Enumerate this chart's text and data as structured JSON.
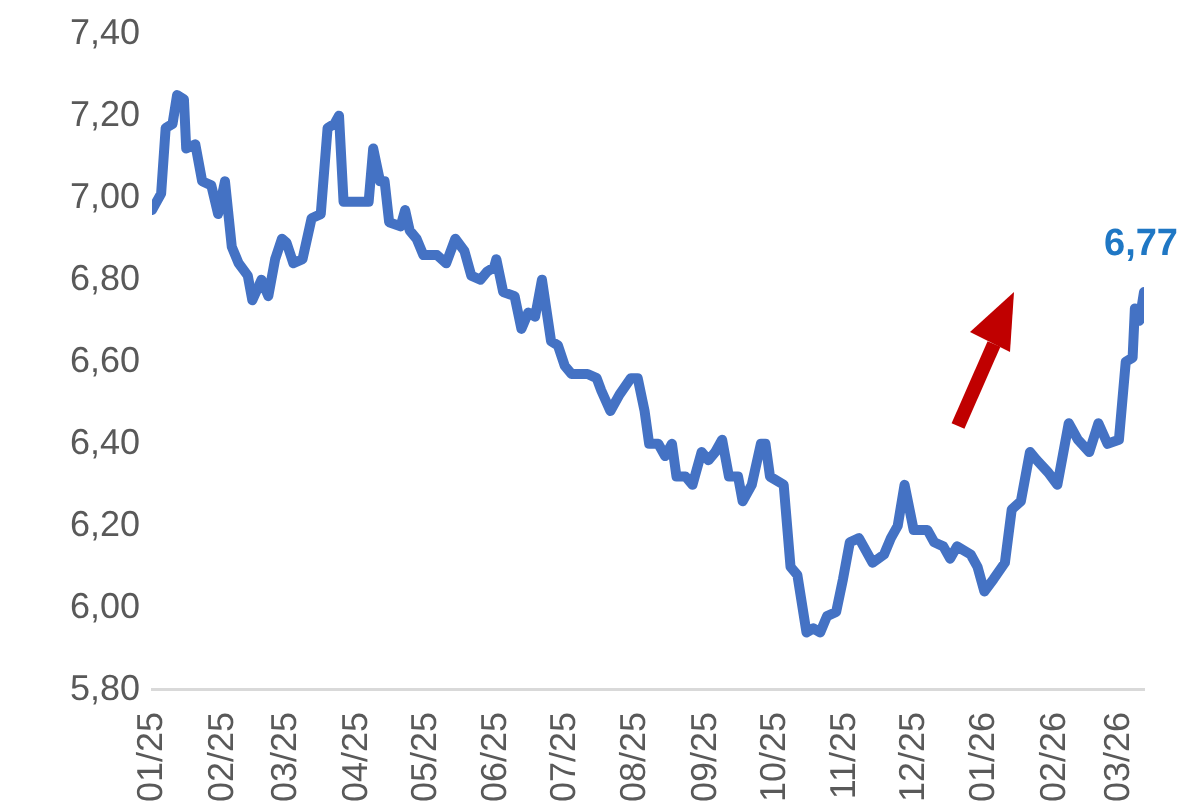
{
  "chart_data": {
    "type": "line",
    "x": [
      "2025-01-01",
      "2025-01-05",
      "2025-01-07",
      "2025-01-10",
      "2025-01-12",
      "2025-01-15",
      "2025-01-16",
      "2025-01-20",
      "2025-01-23",
      "2025-01-27",
      "2025-01-30",
      "2025-02-02",
      "2025-02-05",
      "2025-02-08",
      "2025-02-12",
      "2025-02-14",
      "2025-02-18",
      "2025-02-21",
      "2025-02-24",
      "2025-02-27",
      "2025-03-01",
      "2025-03-04",
      "2025-03-08",
      "2025-03-12",
      "2025-03-16",
      "2025-03-19",
      "2025-03-22",
      "2025-03-24",
      "2025-03-26",
      "2025-04-06",
      "2025-04-08",
      "2025-04-11",
      "2025-04-13",
      "2025-04-15",
      "2025-04-20",
      "2025-04-22",
      "2025-04-24",
      "2025-04-27",
      "2025-04-30",
      "2025-05-06",
      "2025-05-10",
      "2025-05-14",
      "2025-05-18",
      "2025-05-21",
      "2025-05-25",
      "2025-05-28",
      "2025-05-31",
      "2025-06-01",
      "2025-06-04",
      "2025-06-09",
      "2025-06-12",
      "2025-06-15",
      "2025-06-18",
      "2025-06-21",
      "2025-06-25",
      "2025-06-28",
      "2025-07-01",
      "2025-07-04",
      "2025-07-11",
      "2025-07-15",
      "2025-07-17",
      "2025-07-21",
      "2025-07-25",
      "2025-07-30",
      "2025-08-02",
      "2025-08-05",
      "2025-08-07",
      "2025-08-11",
      "2025-08-14",
      "2025-08-17",
      "2025-08-19",
      "2025-08-23",
      "2025-08-26",
      "2025-08-30",
      "2025-09-02",
      "2025-09-05",
      "2025-09-08",
      "2025-09-11",
      "2025-09-15",
      "2025-09-17",
      "2025-09-21",
      "2025-09-25",
      "2025-09-27",
      "2025-09-29",
      "2025-10-05",
      "2025-10-08",
      "2025-10-11",
      "2025-10-15",
      "2025-10-18",
      "2025-10-21",
      "2025-10-24",
      "2025-10-28",
      "2025-10-31",
      "2025-11-03",
      "2025-11-07",
      "2025-11-13",
      "2025-11-18",
      "2025-11-21",
      "2025-11-24",
      "2025-11-27",
      "2025-12-01",
      "2025-12-07",
      "2025-12-10",
      "2025-12-14",
      "2025-12-17",
      "2025-12-20",
      "2025-12-26",
      "2025-12-29",
      "2026-01-01",
      "2026-01-05",
      "2026-01-10",
      "2026-01-13",
      "2026-01-17",
      "2026-01-21",
      "2026-01-24",
      "2026-01-29",
      "2026-02-02",
      "2026-02-07",
      "2026-02-11",
      "2026-02-16",
      "2026-02-20",
      "2026-02-24",
      "2026-03-01",
      "2026-03-04",
      "2026-03-07",
      "2026-03-08",
      "2026-03-10",
      "2026-03-12"
    ],
    "series": [
      {
        "color": "#4472c4",
        "values": [
          6.97,
          7.01,
          7.17,
          7.18,
          7.25,
          7.24,
          7.12,
          7.13,
          7.04,
          7.03,
          6.96,
          7.04,
          6.88,
          6.84,
          6.81,
          6.75,
          6.8,
          6.76,
          6.85,
          6.9,
          6.89,
          6.84,
          6.85,
          6.95,
          6.96,
          7.17,
          7.18,
          7.2,
          6.99,
          6.99,
          7.12,
          7.04,
          7.04,
          6.94,
          6.93,
          6.97,
          6.92,
          6.9,
          6.86,
          6.86,
          6.84,
          6.9,
          6.87,
          6.81,
          6.8,
          6.82,
          6.83,
          6.85,
          6.77,
          6.76,
          6.68,
          6.72,
          6.71,
          6.8,
          6.65,
          6.64,
          6.59,
          6.57,
          6.57,
          6.56,
          6.53,
          6.48,
          6.52,
          6.56,
          6.56,
          6.48,
          6.4,
          6.4,
          6.37,
          6.4,
          6.32,
          6.32,
          6.3,
          6.38,
          6.36,
          6.38,
          6.41,
          6.32,
          6.32,
          6.26,
          6.3,
          6.4,
          6.4,
          6.32,
          6.3,
          6.1,
          6.08,
          5.94,
          5.95,
          5.94,
          5.98,
          5.99,
          6.07,
          6.16,
          6.17,
          6.11,
          6.13,
          6.17,
          6.2,
          6.3,
          6.19,
          6.19,
          6.16,
          6.15,
          6.12,
          6.15,
          6.13,
          6.1,
          6.04,
          6.07,
          6.11,
          6.24,
          6.26,
          6.38,
          6.36,
          6.33,
          6.3,
          6.45,
          6.41,
          6.38,
          6.45,
          6.4,
          6.41,
          6.6,
          6.61,
          6.73,
          6.7,
          6.77
        ]
      }
    ],
    "xlim": [
      "2025-01-01",
      "2026-03-12"
    ],
    "xticks": [
      {
        "value": "2025-01-01",
        "label": "01/25"
      },
      {
        "value": "2025-02-01",
        "label": "02/25"
      },
      {
        "value": "2025-03-01",
        "label": "03/25"
      },
      {
        "value": "2025-04-01",
        "label": "04/25"
      },
      {
        "value": "2025-05-01",
        "label": "05/25"
      },
      {
        "value": "2025-06-01",
        "label": "06/25"
      },
      {
        "value": "2025-07-01",
        "label": "07/25"
      },
      {
        "value": "2025-08-01",
        "label": "08/25"
      },
      {
        "value": "2025-09-01",
        "label": "09/25"
      },
      {
        "value": "2025-10-01",
        "label": "10/25"
      },
      {
        "value": "2025-11-01",
        "label": "11/25"
      },
      {
        "value": "2025-12-01",
        "label": "12/25"
      },
      {
        "value": "2026-01-01",
        "label": "01/26"
      },
      {
        "value": "2026-02-01",
        "label": "02/26"
      },
      {
        "value": "2026-03-01",
        "label": "03/26"
      }
    ],
    "ylim": [
      5.8,
      7.4
    ],
    "yticks": [
      {
        "value": 5.8,
        "label": "5,80"
      },
      {
        "value": 6.0,
        "label": "6,00"
      },
      {
        "value": 6.2,
        "label": "6,20"
      },
      {
        "value": 6.4,
        "label": "6,40"
      },
      {
        "value": 6.6,
        "label": "6,60"
      },
      {
        "value": 6.8,
        "label": "6,80"
      },
      {
        "value": 7.0,
        "label": "7,00"
      },
      {
        "value": 7.2,
        "label": "7,20"
      },
      {
        "value": 7.4,
        "label": "7,40"
      }
    ],
    "annotations": [
      {
        "text": "6,77",
        "x": "2026-03-12",
        "y": 6.77
      }
    ],
    "grid": false,
    "legend": false,
    "marker": "none",
    "line_style": "solid"
  }
}
